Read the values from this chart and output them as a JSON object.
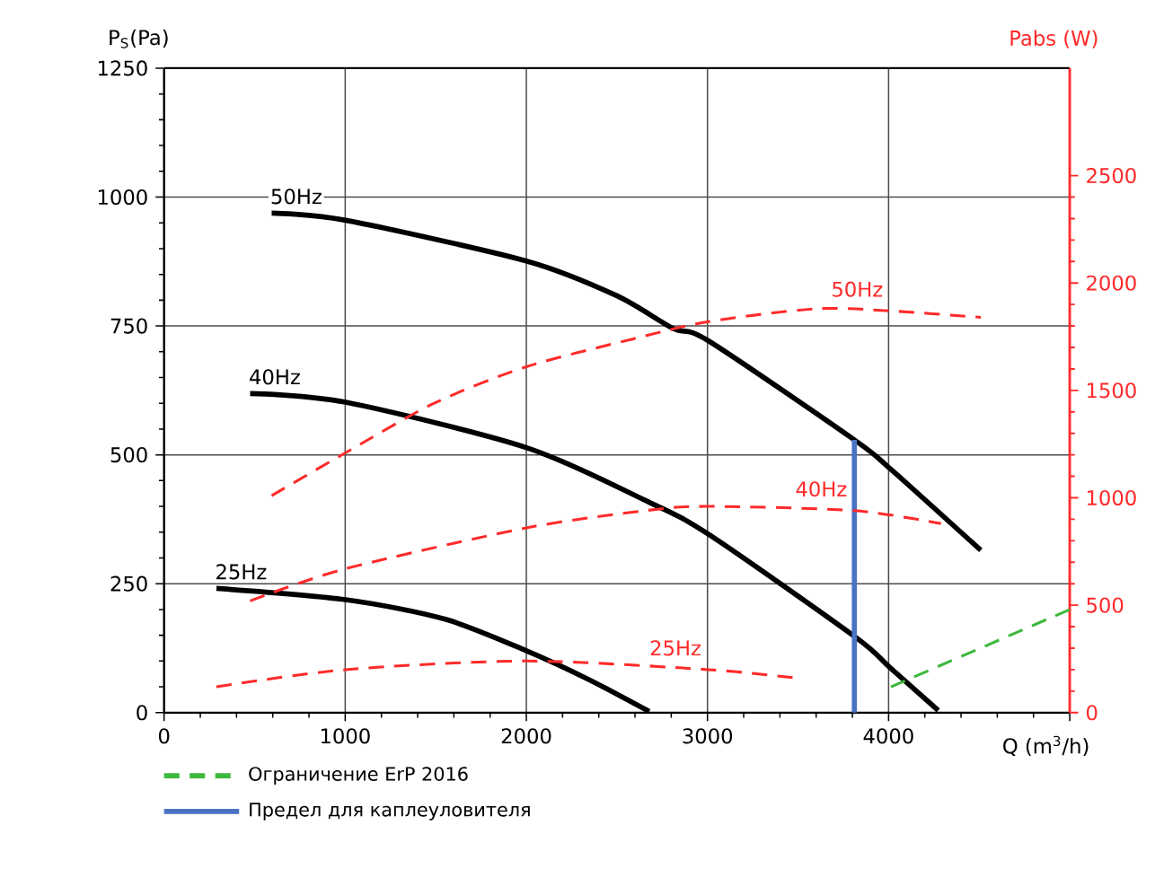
{
  "chart_data": {
    "type": "line",
    "xlabel": "Q (m$^{3}$/h)",
    "ylabel": "P$_{S}$(Pa)",
    "y2label": "Pabs (W)",
    "xlim": [
      0,
      5000
    ],
    "xticks": [
      0,
      1000,
      2000,
      3000,
      4000,
      {
        "value": 5000,
        "label": null
      }
    ],
    "ylim": [
      0,
      1250
    ],
    "yticks": [
      0,
      250,
      500,
      750,
      1000,
      1250
    ],
    "y2lim": [
      0,
      3000
    ],
    "y2ticks": [
      0,
      500,
      1000,
      1500,
      2000,
      2500
    ],
    "grid": true,
    "legend": "bottom",
    "series": [
      {
        "name": "50Hz",
        "color": "#000000",
        "x": [
          594,
          1003,
          2000,
          2497,
          2811,
          3006,
          3811,
          4009,
          4509
        ],
        "values": [
          969,
          955,
          876,
          809,
          745,
          721,
          529,
          473,
          315
        ]
      },
      {
        "name": "40Hz",
        "color": "#000000",
        "x": [
          475,
          1003,
          2000,
          2654,
          3006,
          3811,
          4009,
          4274
        ],
        "values": [
          619,
          602,
          514,
          412,
          346,
          148,
          87,
          4
        ]
      },
      {
        "name": "25Hz",
        "color": "#000000",
        "x": [
          289,
          1003,
          1553,
          2000,
          2340,
          2679
        ],
        "values": [
          241,
          219,
          181,
          120,
          65,
          2
        ]
      },
      {
        "name": "50Hz",
        "color": "#ff2a2a",
        "axis": "y2",
        "line_style": "dashed",
        "x": [
          594,
          1003,
          1491,
          2000,
          2591,
          3006,
          3597,
          4009,
          4509
        ],
        "values": [
          1010,
          1210,
          1440,
          1610,
          1740,
          1820,
          1880,
          1870,
          1840
        ]
      },
      {
        "name": "40Hz",
        "color": "#ff2a2a",
        "axis": "y2",
        "line_style": "dashed",
        "x": [
          475,
          1003,
          2000,
          2654,
          3006,
          3811,
          4289
        ],
        "values": [
          520,
          670,
          860,
          940,
          960,
          940,
          880
        ]
      },
      {
        "name": "25Hz",
        "color": "#ff2a2a",
        "axis": "y2",
        "line_style": "dashed",
        "x": [
          289,
          1003,
          2000,
          3006,
          3497
        ],
        "values": [
          120,
          200,
          240,
          200,
          160
        ]
      },
      {
        "name": "Ограничение ErP 2016",
        "color": "#3cb83c",
        "axis": "y2",
        "line_style": "dashed",
        "x": [
          4013,
          5000
        ],
        "values": [
          120,
          480
        ]
      },
      {
        "name": "Предел для каплеуловителя",
        "color": "#4a72c4",
        "x": [
          3811,
          3811
        ],
        "values": [
          0,
          529
        ]
      }
    ]
  }
}
